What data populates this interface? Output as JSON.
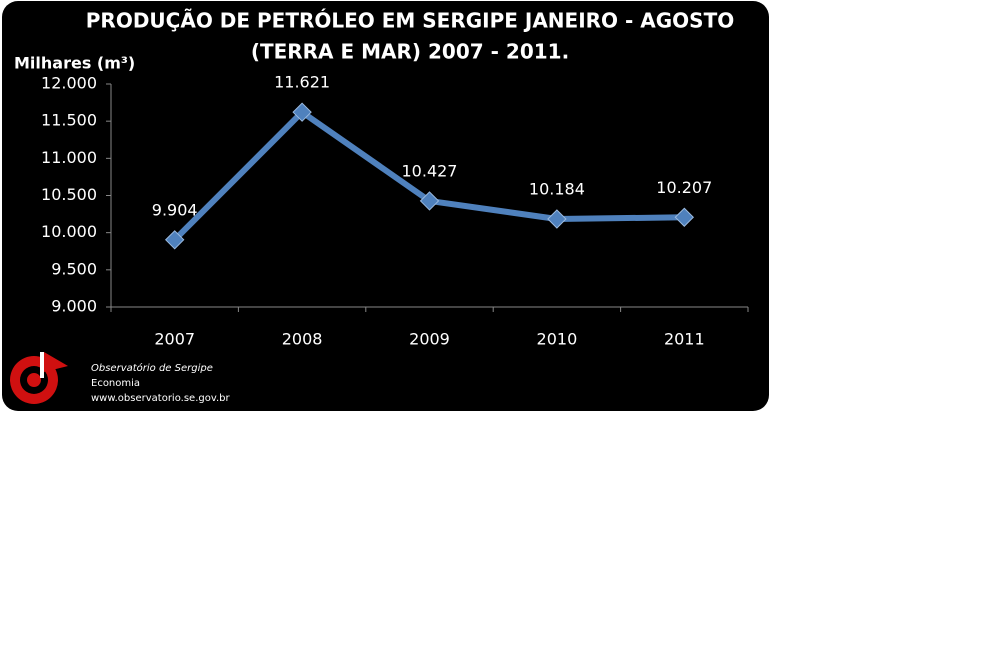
{
  "chart_data": {
    "type": "line",
    "title": [
      "PRODUÇÃO DE PETRÓLEO EM SERGIPE JANEIRO - AGOSTO",
      "(TERRA E MAR) 2007 - 2011."
    ],
    "y_label": "Milhares (m³)",
    "categories": [
      "2007",
      "2008",
      "2009",
      "2010",
      "2011"
    ],
    "values": [
      9904,
      11621,
      10427,
      10184,
      10207
    ],
    "value_labels": [
      "9.904",
      "11.621",
      "10.427",
      "10.184",
      "10.207"
    ],
    "color": "#4f81bd",
    "ylim": [
      9000,
      12000
    ],
    "yticks": [
      {
        "value": 9000,
        "label": "9.000"
      },
      {
        "value": 9500,
        "label": "9.500"
      },
      {
        "value": 10000,
        "label": "10.000"
      },
      {
        "value": 10500,
        "label": "10.500"
      },
      {
        "value": 11000,
        "label": "11.000"
      },
      {
        "value": 11500,
        "label": "11.500"
      },
      {
        "value": 12000,
        "label": "12.000"
      }
    ],
    "grid": false
  },
  "footer": {
    "organization": "Observatório de Sergipe",
    "section": "Economia",
    "url": "www.observatorio.se.gov.br"
  }
}
